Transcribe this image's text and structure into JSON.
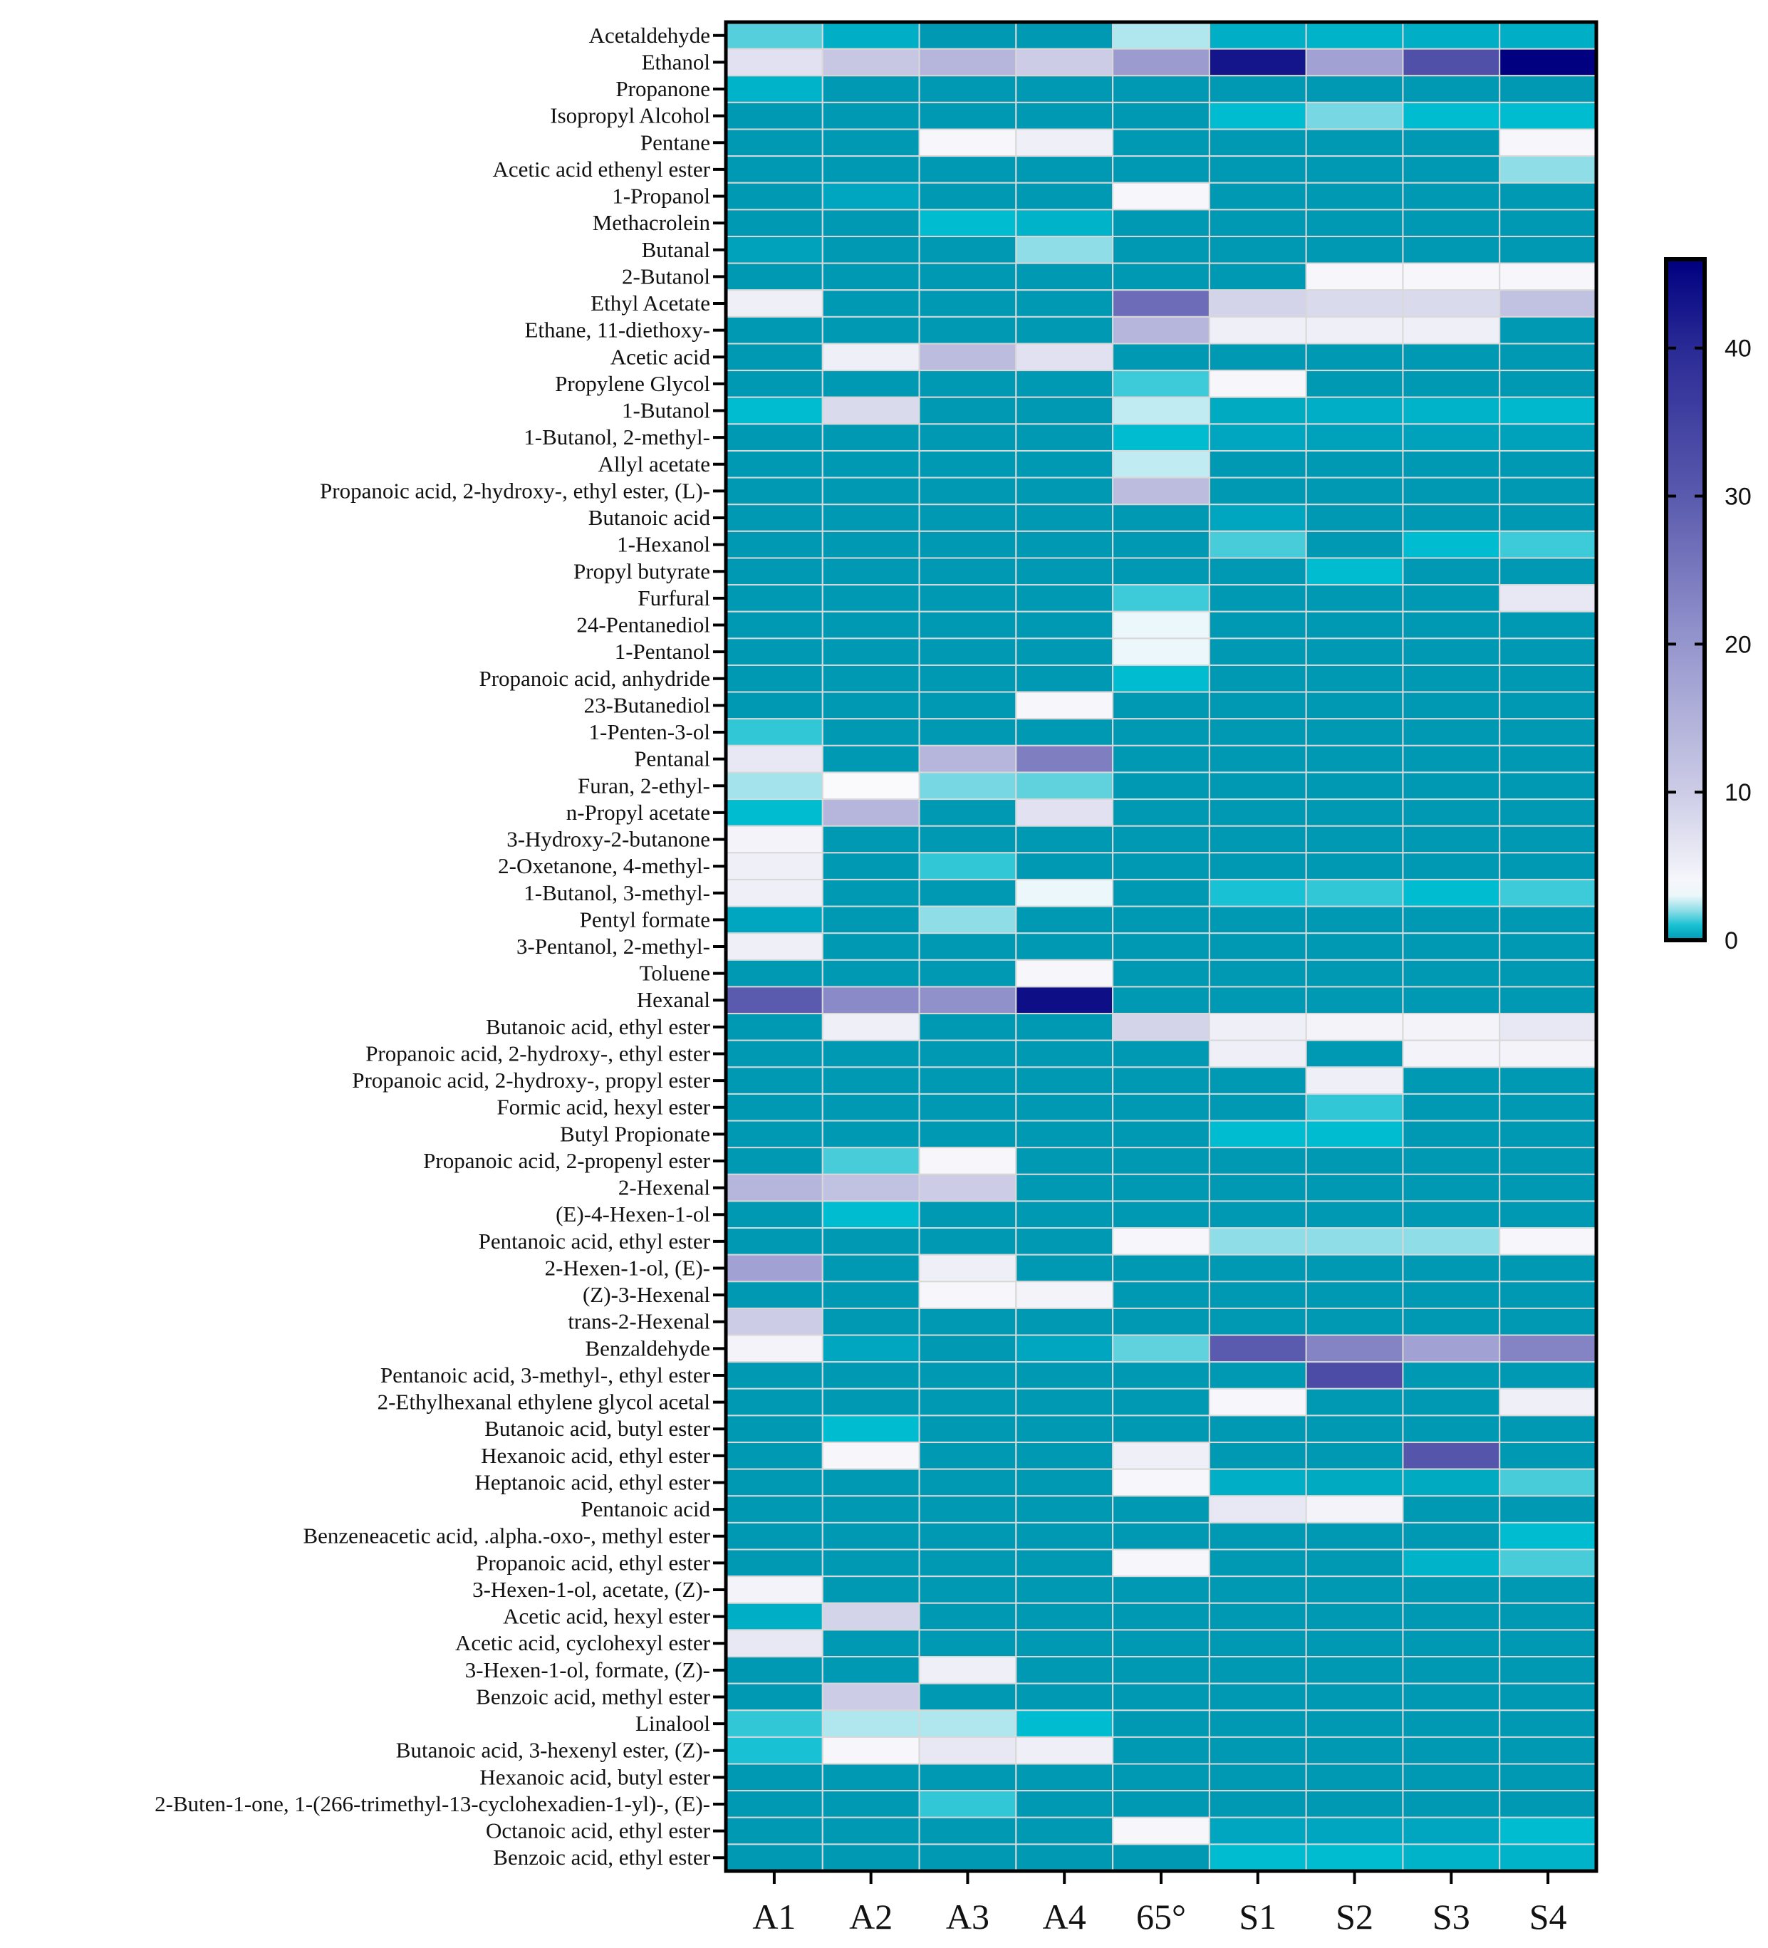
{
  "chart_data": {
    "type": "heatmap",
    "title": "",
    "columns": [
      "A1",
      "A2",
      "A3",
      "A4",
      "65°",
      "S1",
      "S2",
      "S3",
      "S4"
    ],
    "rows": [
      "Acetaldehyde",
      "Ethanol",
      "Propanone",
      "Isopropyl Alcohol",
      "Pentane",
      "Acetic acid ethenyl ester",
      "1-Propanol",
      "Methacrolein",
      "Butanal",
      "2-Butanol",
      "Ethyl Acetate",
      "Ethane, 11-diethoxy-",
      "Acetic acid",
      "Propylene Glycol",
      "1-Butanol",
      "1-Butanol, 2-methyl-",
      "Allyl acetate",
      "Propanoic acid, 2-hydroxy-, ethyl ester, (L)-",
      "Butanoic acid",
      "1-Hexanol",
      "Propyl butyrate",
      "Furfural",
      "24-Pentanediol",
      "1-Pentanol",
      "Propanoic acid, anhydride",
      "23-Butanediol",
      "1-Penten-3-ol",
      "Pentanal",
      "Furan, 2-ethyl-",
      "n-Propyl acetate",
      "3-Hydroxy-2-butanone",
      "2-Oxetanone, 4-methyl-",
      "1-Butanol, 3-methyl-",
      "Pentyl formate",
      "3-Pentanol, 2-methyl-",
      "Toluene",
      "Hexanal",
      "Butanoic acid, ethyl ester",
      "Propanoic acid, 2-hydroxy-, ethyl ester",
      "Propanoic acid, 2-hydroxy-, propyl ester",
      "Formic acid, hexyl ester",
      "Butyl Propionate",
      "Propanoic acid, 2-propenyl ester",
      "2-Hexenal",
      "(E)-4-Hexen-1-ol",
      "Pentanoic acid, ethyl ester",
      "2-Hexen-1-ol, (E)-",
      "(Z)-3-Hexenal",
      "trans-2-Hexenal",
      "Benzaldehyde",
      "Pentanoic acid, 3-methyl-, ethyl ester",
      "2-Ethylhexanal ethylene glycol acetal",
      "Butanoic acid, butyl ester",
      "Hexanoic acid, ethyl ester",
      "Heptanoic acid, ethyl ester",
      "Pentanoic acid",
      "Benzeneacetic acid, .alpha.-oxo-, methyl ester",
      "Propanoic acid, ethyl ester",
      "3-Hexen-1-ol, acetate, (Z)-",
      "Acetic acid, hexyl ester",
      "Acetic acid, cyclohexyl ester",
      "3-Hexen-1-ol, formate, (Z)-",
      "Benzoic acid, methyl ester",
      "Linalool",
      "Butanoic acid, 3-hexenyl ester, (Z)-",
      "Hexanoic acid, butyl ester",
      "2-Buten-1-one, 1-(266-trimethyl-13-cyclohexadien-1-yl)-, (E)-",
      "Octanoic acid, ethyl ester",
      "Benzoic acid, ethyl ester"
    ],
    "values": [
      [
        1.5,
        0.5,
        0,
        0,
        2.3,
        0.5,
        0.6,
        0.5,
        0.5
      ],
      [
        7,
        11,
        14,
        10,
        19,
        43,
        18,
        32,
        46
      ],
      [
        0.6,
        0,
        0,
        0,
        0,
        0,
        0,
        0,
        0
      ],
      [
        0,
        0,
        0,
        0,
        0,
        0.8,
        1.8,
        0.8,
        0.8
      ],
      [
        0,
        0,
        4,
        5,
        0,
        0,
        0,
        0,
        4
      ],
      [
        0,
        0,
        0,
        0,
        0,
        0,
        0,
        0,
        2
      ],
      [
        0,
        0.3,
        0,
        0,
        4,
        0,
        0,
        0,
        0
      ],
      [
        0,
        0,
        0.8,
        0.6,
        0,
        0,
        0,
        0,
        0
      ],
      [
        0.2,
        0,
        0,
        2,
        0,
        0,
        0,
        0,
        0
      ],
      [
        0,
        0,
        0,
        0,
        0,
        0,
        4,
        4,
        4
      ],
      [
        5,
        0,
        0,
        0,
        27,
        9,
        8,
        8,
        12
      ],
      [
        0,
        0,
        0,
        0,
        14,
        5,
        5,
        5,
        0
      ],
      [
        0,
        5,
        13,
        7,
        0,
        0,
        0,
        0,
        0
      ],
      [
        0,
        0,
        0,
        0,
        1.3,
        4,
        0,
        0,
        0
      ],
      [
        0.8,
        8,
        0,
        0,
        2.5,
        0.4,
        0.5,
        0.6,
        0.7
      ],
      [
        0,
        0,
        0,
        0,
        0.8,
        0.3,
        0.2,
        0.2,
        0.2
      ],
      [
        0,
        0,
        0,
        0,
        2.5,
        0,
        0,
        0,
        0
      ],
      [
        0,
        0,
        0,
        0,
        13,
        0,
        0,
        0,
        0
      ],
      [
        0,
        0,
        0,
        0,
        0,
        0.3,
        0,
        0,
        0
      ],
      [
        0,
        0,
        0,
        0,
        0,
        1.4,
        0,
        0.8,
        1.3
      ],
      [
        0,
        0,
        0,
        0,
        0,
        0,
        0.8,
        0,
        0
      ],
      [
        0,
        0,
        0,
        0,
        1.3,
        0,
        0,
        0,
        6
      ],
      [
        0,
        0,
        0,
        0,
        3,
        0,
        0,
        0,
        0
      ],
      [
        0,
        0,
        0,
        0,
        3,
        0,
        0,
        0,
        0
      ],
      [
        0,
        0,
        0,
        0,
        0.8,
        0,
        0,
        0,
        0
      ],
      [
        0,
        0,
        0,
        4,
        0,
        0,
        0,
        0,
        0
      ],
      [
        1.2,
        0,
        0,
        0,
        0,
        0,
        0,
        0,
        0
      ],
      [
        6,
        0,
        14,
        24,
        0,
        0,
        0,
        0,
        0
      ],
      [
        2.2,
        3.5,
        1.8,
        1.6,
        0,
        0,
        0,
        0,
        0
      ],
      [
        0.8,
        14,
        0,
        7,
        0,
        0,
        0,
        0,
        0
      ],
      [
        4.5,
        0,
        0,
        0,
        0,
        0,
        0,
        0,
        0
      ],
      [
        5,
        0,
        1.2,
        0,
        0,
        0,
        0,
        0,
        0
      ],
      [
        5,
        0,
        0,
        3,
        0,
        1,
        1.2,
        0.8,
        1.3
      ],
      [
        0.3,
        0,
        2,
        0,
        0,
        0,
        0,
        0,
        0
      ],
      [
        5,
        0,
        0,
        0,
        0,
        0,
        0,
        0,
        0
      ],
      [
        0,
        0,
        0,
        4,
        0,
        0,
        0,
        0,
        0
      ],
      [
        30,
        22,
        21,
        44,
        0,
        0,
        0,
        0,
        0
      ],
      [
        0,
        5,
        0,
        0,
        9,
        5,
        4.5,
        4.5,
        6
      ],
      [
        0,
        0,
        0,
        0,
        0,
        5,
        0,
        4.5,
        4.5
      ],
      [
        0,
        0,
        0,
        0,
        0,
        0,
        5,
        0,
        0
      ],
      [
        0,
        0,
        0,
        0,
        0,
        0,
        1.2,
        0,
        0
      ],
      [
        0,
        0,
        0,
        0,
        0,
        0.8,
        0.8,
        0,
        0
      ],
      [
        0,
        1.4,
        4,
        0,
        0,
        0,
        0,
        0,
        0
      ],
      [
        14,
        12,
        10,
        0,
        0,
        0,
        0,
        0,
        0
      ],
      [
        0,
        0.8,
        0,
        0,
        0,
        0,
        0,
        0,
        0
      ],
      [
        0,
        0,
        0,
        0,
        4,
        2,
        2,
        2,
        4
      ],
      [
        18,
        0,
        5,
        0,
        0,
        0,
        0,
        0,
        0
      ],
      [
        0,
        0,
        4,
        4.5,
        0,
        0,
        0,
        0,
        0
      ],
      [
        10,
        0,
        0,
        0,
        0,
        0,
        0,
        0,
        0
      ],
      [
        4.5,
        0.3,
        0,
        0.3,
        1.6,
        30,
        23,
        18,
        23
      ],
      [
        0,
        0,
        0,
        0,
        0,
        0,
        33,
        0,
        0
      ],
      [
        0,
        0,
        0,
        0,
        0,
        4,
        0,
        0,
        5
      ],
      [
        0,
        0.8,
        0,
        0,
        0,
        0,
        0,
        0,
        0
      ],
      [
        0,
        4,
        0,
        0,
        5,
        0,
        0,
        31,
        0
      ],
      [
        0,
        0,
        0,
        0,
        4,
        0.5,
        0.4,
        0.4,
        1.4
      ],
      [
        0,
        0,
        0,
        0,
        0,
        6,
        4.5,
        0,
        0
      ],
      [
        0,
        0,
        0,
        0,
        0,
        0,
        0,
        0,
        0.8
      ],
      [
        0,
        0,
        0,
        0,
        4,
        0,
        0,
        0.6,
        1.4
      ],
      [
        4.5,
        0,
        0,
        0,
        0,
        0,
        0,
        0,
        0
      ],
      [
        0.5,
        9,
        0,
        0,
        0,
        0,
        0,
        0,
        0
      ],
      [
        6,
        0,
        0,
        0,
        0,
        0,
        0,
        0,
        0
      ],
      [
        0,
        0,
        5,
        0,
        0,
        0,
        0,
        0,
        0
      ],
      [
        0,
        10,
        0,
        0,
        0,
        0,
        0,
        0,
        0
      ],
      [
        1.2,
        2.3,
        2.3,
        0.8,
        0,
        0,
        0,
        0,
        0
      ],
      [
        1,
        4,
        6,
        5,
        0,
        0,
        0,
        0,
        0
      ],
      [
        0,
        0,
        0,
        0,
        0,
        0,
        0,
        0,
        0
      ],
      [
        0,
        0,
        1.2,
        0,
        0,
        0,
        0,
        0,
        0
      ],
      [
        0,
        0,
        0,
        0,
        4,
        0.3,
        0.3,
        0.3,
        0.8
      ],
      [
        0,
        0,
        0,
        0,
        0,
        0.8,
        0.8,
        0.6,
        0.6
      ]
    ],
    "colorbar": {
      "range": [
        0,
        46
      ],
      "ticks": [
        "0",
        "10",
        "20",
        "30",
        "40"
      ],
      "tick_values": [
        0,
        10,
        20,
        30,
        40
      ]
    },
    "colors": {
      "low": "#0099b4",
      "mid": "#ffffff",
      "high": "#000080"
    }
  }
}
